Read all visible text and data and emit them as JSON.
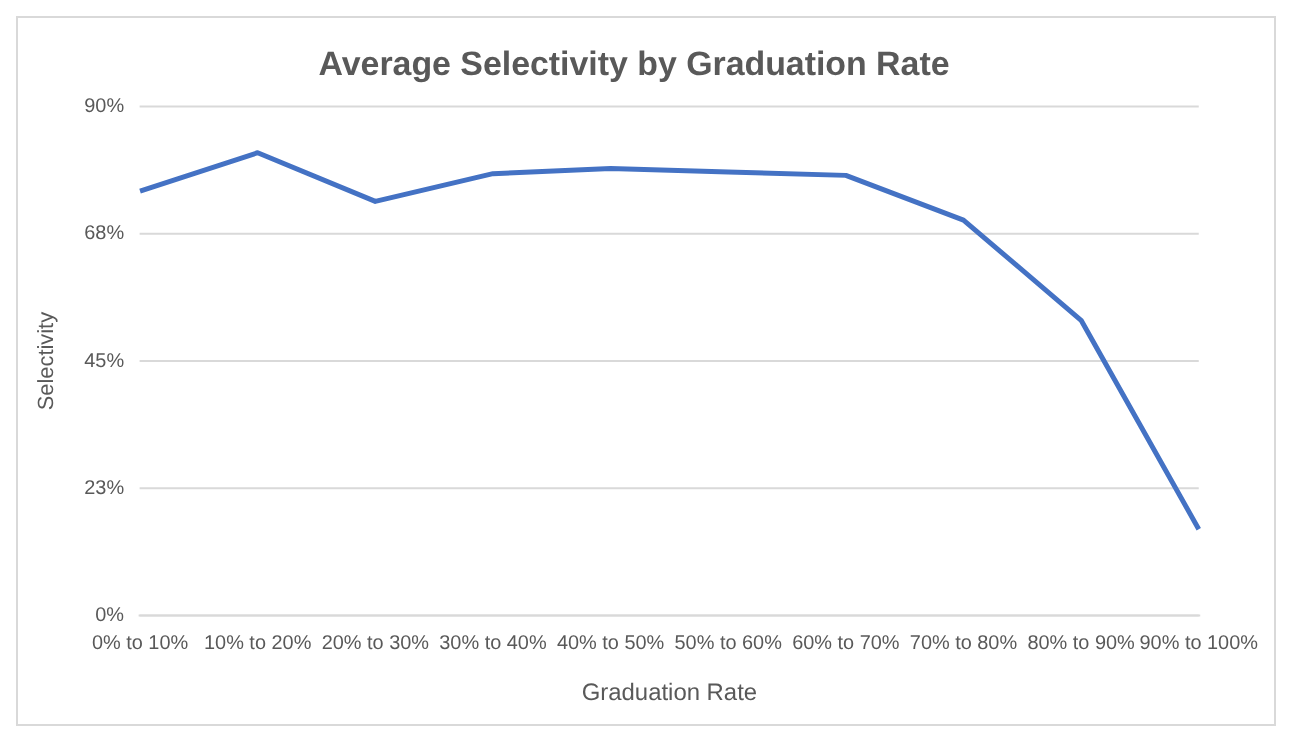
{
  "chart_data": {
    "type": "line",
    "title": "Average Selectivity by Graduation Rate",
    "xlabel": "Graduation Rate",
    "ylabel": "Selectivity",
    "categories": [
      "0% to 10%",
      "10% to 20%",
      "20% to 30%",
      "30% to 40%",
      "40% to 50%",
      "50% to 60%",
      "60% to 70%",
      "70% to 80%",
      "80% to 90%",
      "90% to 100%"
    ],
    "series": [
      {
        "color": "#4472c4",
        "values": [
          75,
          81.8,
          73.2,
          78.1,
          79,
          78.4,
          77.8,
          69.9,
          52.2,
          15.3
        ]
      }
    ],
    "ylim": [
      0,
      90
    ],
    "yticks": [
      {
        "value": 0,
        "label": "0%"
      },
      {
        "value": 22.5,
        "label": "23%"
      },
      {
        "value": 45,
        "label": "45%"
      },
      {
        "value": 67.5,
        "label": "68%"
      },
      {
        "value": 90,
        "label": "90%"
      }
    ],
    "grid": "y",
    "marker": "none",
    "line_style": "solid"
  }
}
